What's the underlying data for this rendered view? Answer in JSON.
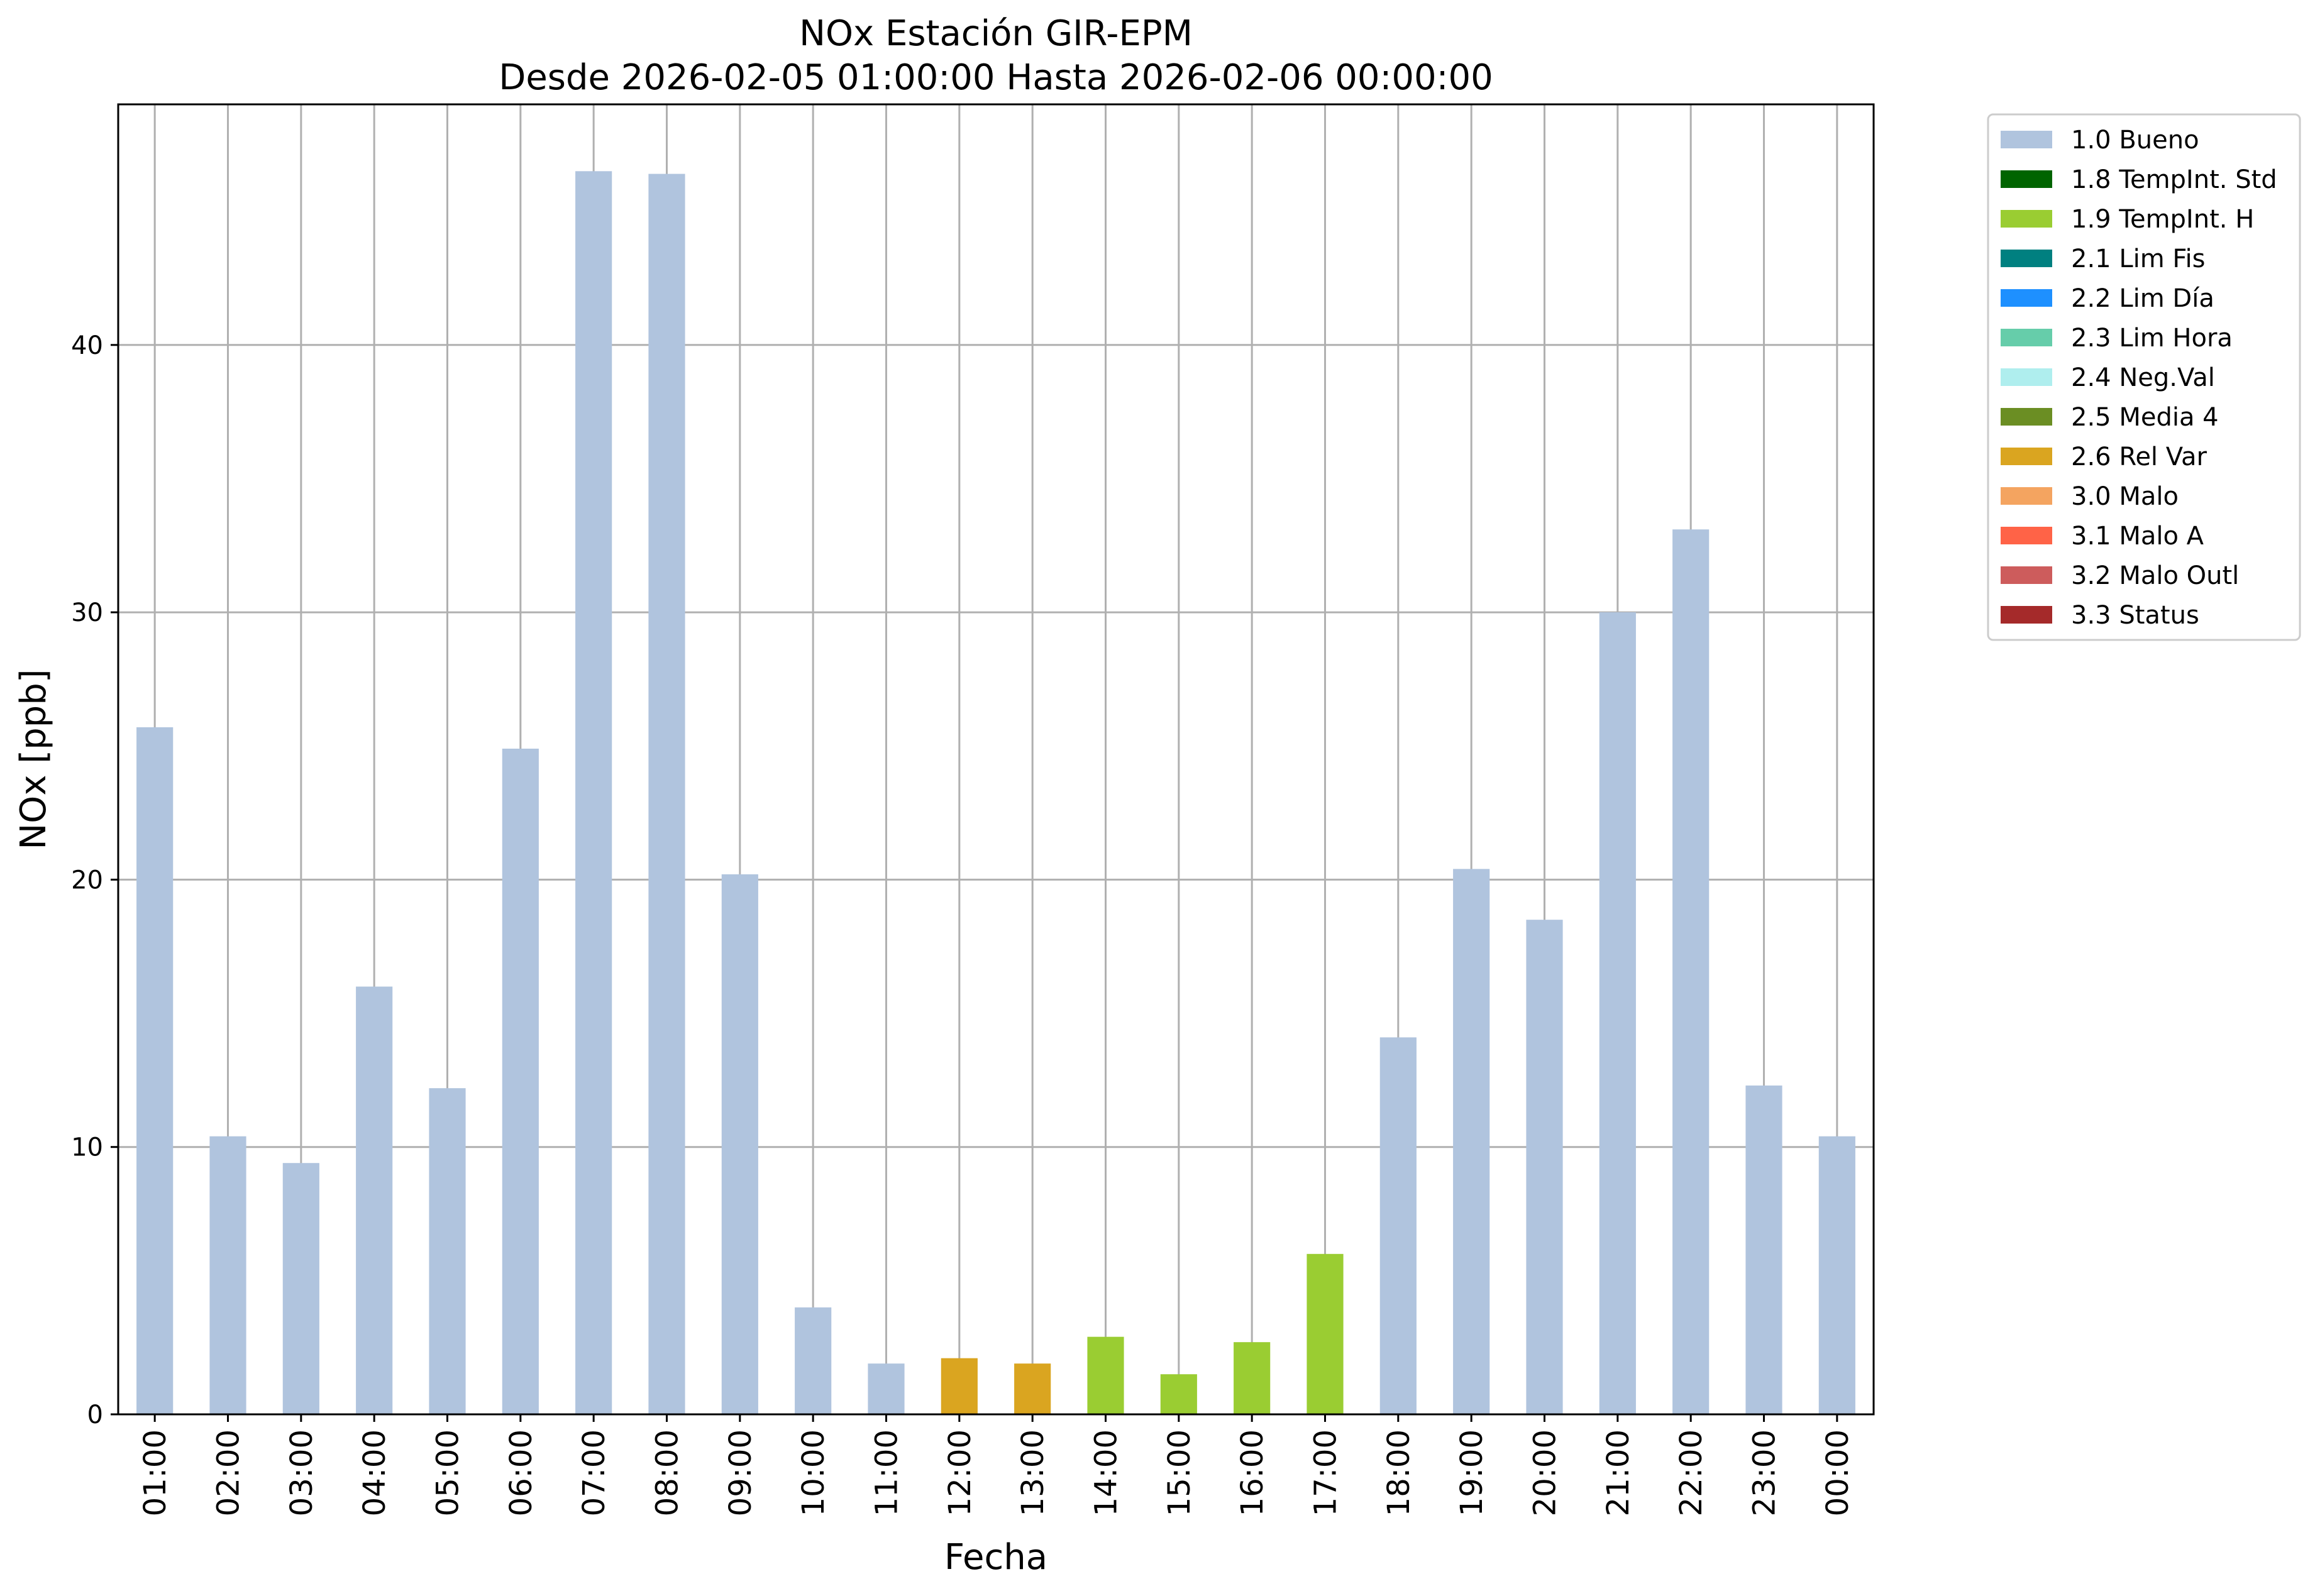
{
  "chart_data": {
    "type": "bar",
    "title": "NOx Estación GIR-EPM",
    "subtitle": "Desde 2026-02-05 01:00:00 Hasta 2026-02-06 00:00:00",
    "xlabel": "Fecha",
    "ylabel": "NOx [ppb]",
    "ylim": [
      0,
      49
    ],
    "yticks": [
      0,
      10,
      20,
      30,
      40
    ],
    "grid": true,
    "legend_position": "outside-top-right",
    "categories": [
      "01:00",
      "02:00",
      "03:00",
      "04:00",
      "05:00",
      "06:00",
      "07:00",
      "08:00",
      "09:00",
      "10:00",
      "11:00",
      "12:00",
      "13:00",
      "14:00",
      "15:00",
      "16:00",
      "17:00",
      "18:00",
      "19:00",
      "20:00",
      "21:00",
      "22:00",
      "23:00",
      "00:00"
    ],
    "values": [
      25.7,
      10.4,
      9.4,
      16.0,
      12.2,
      24.9,
      46.5,
      46.4,
      20.2,
      4.0,
      1.9,
      2.1,
      1.9,
      2.9,
      1.5,
      2.7,
      6.0,
      14.1,
      20.4,
      18.5,
      30.0,
      33.1,
      12.3,
      10.4
    ],
    "flags": [
      "1.0 Bueno",
      "1.0 Bueno",
      "1.0 Bueno",
      "1.0 Bueno",
      "1.0 Bueno",
      "1.0 Bueno",
      "1.0 Bueno",
      "1.0 Bueno",
      "1.0 Bueno",
      "1.0 Bueno",
      "1.0 Bueno",
      "2.6 Rel Var",
      "2.6 Rel Var",
      "1.9 TempInt. H",
      "1.9 TempInt. H",
      "1.9 TempInt. H",
      "1.9 TempInt. H",
      "1.0 Bueno",
      "1.0 Bueno",
      "1.0 Bueno",
      "1.0 Bueno",
      "1.0 Bueno",
      "1.0 Bueno",
      "1.0 Bueno"
    ],
    "legend": [
      {
        "name": "1.0 Bueno",
        "color": "#b0c4de"
      },
      {
        "name": "1.8 TempInt. Std",
        "color": "#006400"
      },
      {
        "name": "1.9 TempInt. H",
        "color": "#9acd32"
      },
      {
        "name": "2.1 Lim Fis",
        "color": "#008080"
      },
      {
        "name": "2.2 Lim Día",
        "color": "#1e90ff"
      },
      {
        "name": "2.3 Lim Hora",
        "color": "#66cdaa"
      },
      {
        "name": "2.4 Neg.Val",
        "color": "#afeeee"
      },
      {
        "name": "2.5 Media 4",
        "color": "#6b8e23"
      },
      {
        "name": "2.6 Rel Var",
        "color": "#daa520"
      },
      {
        "name": "3.0 Malo",
        "color": "#f4a460"
      },
      {
        "name": "3.1 Malo A",
        "color": "#ff6347"
      },
      {
        "name": "3.2 Malo Outl",
        "color": "#cd5c5c"
      },
      {
        "name": "3.3 Status",
        "color": "#a52a2a"
      }
    ]
  }
}
